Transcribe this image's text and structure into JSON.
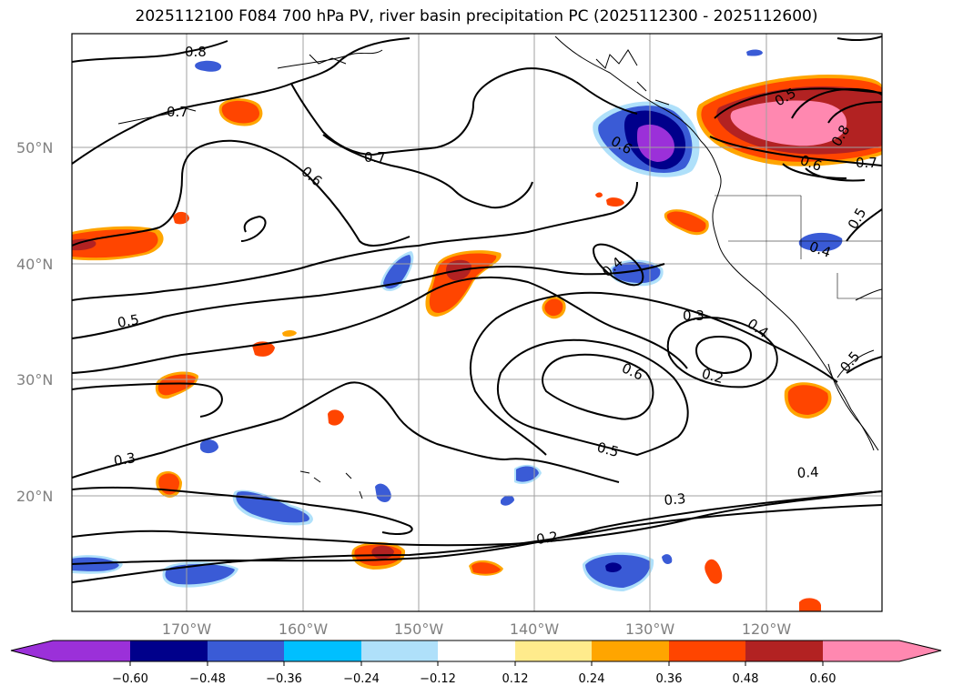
{
  "title": "2025112100 F084 700 hPa PV, river basin precipitation PC (2025112300 - 2025112600)",
  "lat_labels": [
    "50°N",
    "40°N",
    "30°N",
    "20°N"
  ],
  "lon_labels": [
    "170°W",
    "160°W",
    "150°W",
    "140°W",
    "130°W",
    "120°W"
  ],
  "contour_labels": [
    "0.8",
    "0.7",
    "0.7",
    "0.6",
    "0.5",
    "0.3",
    "0.6",
    "0.5",
    "0.4",
    "0.3",
    "0.4",
    "0.2",
    "0.2",
    "0.3",
    "0.4",
    "0.5",
    "0.6",
    "0.8",
    "0.6",
    "0.7",
    "0.5",
    "0.4",
    "0.5"
  ],
  "colorbar": {
    "ticks": [
      "−0.60",
      "−0.48",
      "−0.36",
      "−0.24",
      "−0.12",
      "0.12",
      "0.24",
      "0.36",
      "0.48",
      "0.60"
    ],
    "colors": {
      "lt_neg060": "#9b30d9",
      "neg060_neg048": "#00008b",
      "neg048_neg036": "#3a5bd6",
      "neg036_neg024": "#00bfff",
      "neg024_neg012": "#afe0fa",
      "neg012_012": "#ffffff",
      "p012_024": "#ffeb8c",
      "p024_036": "#ffa500",
      "p036_048": "#ff4500",
      "p048_060": "#b22222",
      "gt_060": "#ff88b0"
    }
  }
}
